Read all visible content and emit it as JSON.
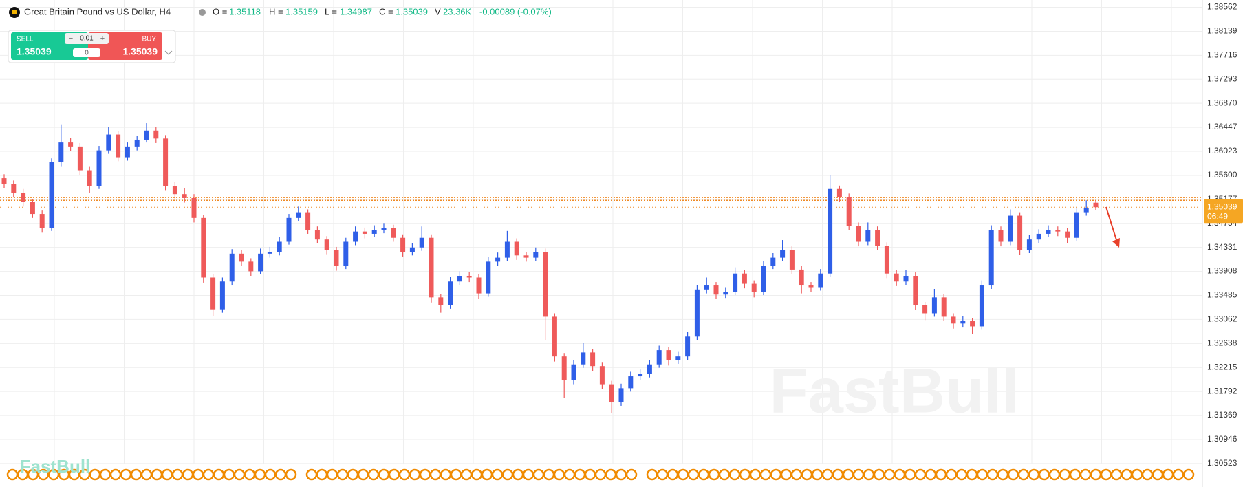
{
  "header": {
    "symbol": "Great Britain Pound vs US Dollar, H4",
    "o_label": "O =",
    "open": "1.35118",
    "h_label": "H =",
    "high": "1.35159",
    "l_label": "L =",
    "low": "1.34987",
    "c_label": "C =",
    "close": "1.35039",
    "v_label": "V",
    "volume": "23.36K",
    "change": "-0.00089 (-0.07%)"
  },
  "trade_panel": {
    "sell_label": "SELL",
    "sell_price": "1.35039",
    "buy_label": "BUY",
    "buy_price": "1.35039",
    "lot": "0.01",
    "spread": "0",
    "minus": "−",
    "plus": "+"
  },
  "watermark": [
    "FastBull",
    "FastBull"
  ],
  "chart_data": {
    "type": "candlestick",
    "up_color": "#2f5fe8",
    "down_color": "#ef5a5a",
    "grid": true,
    "ylim": [
      1.3017,
      1.3869
    ],
    "yticks": [
      {
        "value": 1.38562,
        "label": "1.38562"
      },
      {
        "value": 1.38139,
        "label": "1.38139"
      },
      {
        "value": 1.37716,
        "label": "1.37716"
      },
      {
        "value": 1.37293,
        "label": "1.37293"
      },
      {
        "value": 1.3687,
        "label": "1.36870"
      },
      {
        "value": 1.36447,
        "label": "1.36447"
      },
      {
        "value": 1.36023,
        "label": "1.36023"
      },
      {
        "value": 1.356,
        "label": "1.35600"
      },
      {
        "value": 1.35177,
        "label": "1.35177"
      },
      {
        "value": 1.34754,
        "label": "1.34754"
      },
      {
        "value": 1.34331,
        "label": "1.34331"
      },
      {
        "value": 1.33908,
        "label": "1.33908"
      },
      {
        "value": 1.33485,
        "label": "1.33485"
      },
      {
        "value": 1.33062,
        "label": "1.33062"
      },
      {
        "value": 1.32638,
        "label": "1.32638"
      },
      {
        "value": 1.32215,
        "label": "1.32215"
      },
      {
        "value": 1.31792,
        "label": "1.31792"
      },
      {
        "value": 1.31369,
        "label": "1.31369"
      },
      {
        "value": 1.30946,
        "label": "1.30946"
      },
      {
        "value": 1.30523,
        "label": "1.30523"
      }
    ],
    "levels": [
      1.3521,
      1.3516
    ],
    "last_price": {
      "value": 1.35039,
      "label": "1.35039",
      "countdown": "06:49"
    },
    "candles": [
      [
        1.3555,
        1.3562,
        1.3538,
        1.3545
      ],
      [
        1.3545,
        1.3551,
        1.3521,
        1.3529
      ],
      [
        1.3529,
        1.3536,
        1.3505,
        1.3513
      ],
      [
        1.3513,
        1.3518,
        1.3485,
        1.3492
      ],
      [
        1.3492,
        1.3498,
        1.3459,
        1.3467
      ],
      [
        1.3467,
        1.359,
        1.3462,
        1.3583
      ],
      [
        1.3583,
        1.365,
        1.3575,
        1.3618
      ],
      [
        1.3618,
        1.3626,
        1.3603,
        1.3611
      ],
      [
        1.3611,
        1.3617,
        1.3561,
        1.3569
      ],
      [
        1.3569,
        1.3575,
        1.3529,
        1.3541
      ],
      [
        1.3541,
        1.3612,
        1.3536,
        1.3604
      ],
      [
        1.3604,
        1.3645,
        1.3598,
        1.3632
      ],
      [
        1.3632,
        1.3638,
        1.3585,
        1.3592
      ],
      [
        1.3592,
        1.3618,
        1.3586,
        1.3611
      ],
      [
        1.3611,
        1.363,
        1.3604,
        1.3623
      ],
      [
        1.3623,
        1.3652,
        1.3618,
        1.3639
      ],
      [
        1.3639,
        1.3645,
        1.3617,
        1.3625
      ],
      [
        1.3625,
        1.3631,
        1.3534,
        1.3541
      ],
      [
        1.3541,
        1.3548,
        1.3519,
        1.3527
      ],
      [
        1.3527,
        1.3538,
        1.3512,
        1.352
      ],
      [
        1.352,
        1.3527,
        1.3477,
        1.3485
      ],
      [
        1.3485,
        1.349,
        1.3371,
        1.338
      ],
      [
        1.338,
        1.3386,
        1.3312,
        1.3324
      ],
      [
        1.3324,
        1.338,
        1.3318,
        1.3373
      ],
      [
        1.3373,
        1.343,
        1.3366,
        1.3422
      ],
      [
        1.3422,
        1.3428,
        1.34,
        1.3408
      ],
      [
        1.3408,
        1.3414,
        1.3383,
        1.3391
      ],
      [
        1.3391,
        1.3431,
        1.3386,
        1.3422
      ],
      [
        1.3422,
        1.3434,
        1.3415,
        1.3425
      ],
      [
        1.3425,
        1.3452,
        1.3419,
        1.3443
      ],
      [
        1.3443,
        1.3492,
        1.3438,
        1.3485
      ],
      [
        1.3485,
        1.3505,
        1.3479,
        1.3495
      ],
      [
        1.3495,
        1.35,
        1.3457,
        1.3464
      ],
      [
        1.3464,
        1.347,
        1.344,
        1.3447
      ],
      [
        1.3447,
        1.3453,
        1.3421,
        1.3429
      ],
      [
        1.3429,
        1.3434,
        1.3392,
        1.3401
      ],
      [
        1.3401,
        1.345,
        1.3395,
        1.3443
      ],
      [
        1.3443,
        1.347,
        1.3437,
        1.3461
      ],
      [
        1.3461,
        1.3468,
        1.3449,
        1.3457
      ],
      [
        1.3457,
        1.3472,
        1.3451,
        1.3464
      ],
      [
        1.3464,
        1.3476,
        1.3458,
        1.3467
      ],
      [
        1.3467,
        1.3473,
        1.3443,
        1.345
      ],
      [
        1.345,
        1.3456,
        1.3417,
        1.3425
      ],
      [
        1.3425,
        1.3441,
        1.3419,
        1.3433
      ],
      [
        1.3433,
        1.347,
        1.3427,
        1.345
      ],
      [
        1.345,
        1.3456,
        1.3336,
        1.3345
      ],
      [
        1.3345,
        1.3351,
        1.3318,
        1.3331
      ],
      [
        1.3331,
        1.3381,
        1.3325,
        1.3373
      ],
      [
        1.3373,
        1.3391,
        1.3366,
        1.3383
      ],
      [
        1.3383,
        1.339,
        1.3372,
        1.338
      ],
      [
        1.338,
        1.3386,
        1.3342,
        1.3352
      ],
      [
        1.3352,
        1.3416,
        1.3346,
        1.3408
      ],
      [
        1.3408,
        1.3424,
        1.3401,
        1.3415
      ],
      [
        1.3415,
        1.3462,
        1.3409,
        1.3443
      ],
      [
        1.3443,
        1.3449,
        1.3411,
        1.3419
      ],
      [
        1.3419,
        1.3425,
        1.3408,
        1.3415
      ],
      [
        1.3415,
        1.3433,
        1.3409,
        1.3425
      ],
      [
        1.3425,
        1.3431,
        1.327,
        1.3311
      ],
      [
        1.3311,
        1.3317,
        1.3232,
        1.3241
      ],
      [
        1.3241,
        1.3247,
        1.3168,
        1.3199
      ],
      [
        1.3199,
        1.3235,
        1.3192,
        1.3227
      ],
      [
        1.3227,
        1.3265,
        1.3221,
        1.3248
      ],
      [
        1.3248,
        1.3254,
        1.3215,
        1.3224
      ],
      [
        1.3224,
        1.323,
        1.3184,
        1.3192
      ],
      [
        1.3192,
        1.3198,
        1.3141,
        1.316
      ],
      [
        1.316,
        1.3193,
        1.3154,
        1.3185
      ],
      [
        1.3185,
        1.3214,
        1.3179,
        1.3206
      ],
      [
        1.3206,
        1.3218,
        1.3199,
        1.321
      ],
      [
        1.321,
        1.3235,
        1.3204,
        1.3227
      ],
      [
        1.3227,
        1.326,
        1.3221,
        1.3252
      ],
      [
        1.3252,
        1.3258,
        1.3225,
        1.3234
      ],
      [
        1.3234,
        1.3249,
        1.3228,
        1.3241
      ],
      [
        1.3241,
        1.3284,
        1.3235,
        1.3276
      ],
      [
        1.3276,
        1.3367,
        1.327,
        1.3359
      ],
      [
        1.3359,
        1.338,
        1.3352,
        1.3366
      ],
      [
        1.3366,
        1.3372,
        1.3342,
        1.335
      ],
      [
        1.335,
        1.3363,
        1.3344,
        1.3355
      ],
      [
        1.3355,
        1.3398,
        1.3349,
        1.3387
      ],
      [
        1.3387,
        1.3393,
        1.3361,
        1.3369
      ],
      [
        1.3369,
        1.3375,
        1.3345,
        1.3355
      ],
      [
        1.3355,
        1.3409,
        1.3349,
        1.3401
      ],
      [
        1.3401,
        1.3423,
        1.3395,
        1.3415
      ],
      [
        1.3415,
        1.3446,
        1.3409,
        1.3429
      ],
      [
        1.3429,
        1.3435,
        1.3386,
        1.3394
      ],
      [
        1.3394,
        1.34,
        1.3352,
        1.3366
      ],
      [
        1.3366,
        1.3372,
        1.3355,
        1.3363
      ],
      [
        1.3363,
        1.3395,
        1.3357,
        1.3387
      ],
      [
        1.3387,
        1.356,
        1.3381,
        1.3536
      ],
      [
        1.3536,
        1.3542,
        1.3514,
        1.3522
      ],
      [
        1.3522,
        1.3528,
        1.3463,
        1.3471
      ],
      [
        1.3471,
        1.3477,
        1.3435,
        1.3443
      ],
      [
        1.3443,
        1.3477,
        1.3437,
        1.3464
      ],
      [
        1.3464,
        1.347,
        1.3428,
        1.3436
      ],
      [
        1.3436,
        1.3442,
        1.3379,
        1.3387
      ],
      [
        1.3387,
        1.3393,
        1.3365,
        1.3373
      ],
      [
        1.3373,
        1.3393,
        1.3367,
        1.3383
      ],
      [
        1.3383,
        1.3389,
        1.3323,
        1.3331
      ],
      [
        1.3331,
        1.3337,
        1.3305,
        1.3317
      ],
      [
        1.3317,
        1.336,
        1.3311,
        1.3345
      ],
      [
        1.3345,
        1.3351,
        1.3303,
        1.3311
      ],
      [
        1.3311,
        1.3317,
        1.329,
        1.3299
      ],
      [
        1.3299,
        1.3312,
        1.3292,
        1.3303
      ],
      [
        1.3303,
        1.3309,
        1.328,
        1.3294
      ],
      [
        1.3294,
        1.3375,
        1.3288,
        1.3366
      ],
      [
        1.3366,
        1.3472,
        1.336,
        1.3464
      ],
      [
        1.3464,
        1.347,
        1.3435,
        1.3443
      ],
      [
        1.3443,
        1.35,
        1.3437,
        1.3489
      ],
      [
        1.3489,
        1.3495,
        1.342,
        1.3429
      ],
      [
        1.3429,
        1.3455,
        1.3423,
        1.3447
      ],
      [
        1.3447,
        1.3465,
        1.3441,
        1.3457
      ],
      [
        1.3457,
        1.3472,
        1.3451,
        1.3464
      ],
      [
        1.3464,
        1.347,
        1.3453,
        1.3461
      ],
      [
        1.3461,
        1.3467,
        1.344,
        1.345
      ],
      [
        1.345,
        1.3503,
        1.3444,
        1.3495
      ],
      [
        1.3495,
        1.3516,
        1.3489,
        1.3503
      ],
      [
        1.35118,
        1.35159,
        1.34987,
        1.35039
      ]
    ]
  }
}
